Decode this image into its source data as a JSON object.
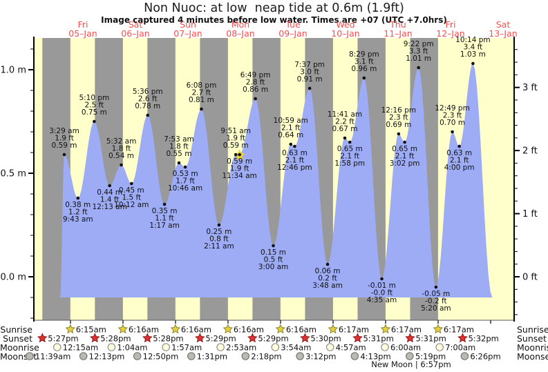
{
  "title": "Non Nuoc: at low  neap tide at 0.6m (1.9ft)",
  "subtitle": "Image captured 4 minutes before low water. Times are +07 (UTC +7.0hrs)",
  "days": [
    {
      "dow": "Fri",
      "date": "05–Jan"
    },
    {
      "dow": "Sat",
      "date": "06–Jan"
    },
    {
      "dow": "Sun",
      "date": "07–Jan"
    },
    {
      "dow": "Mon",
      "date": "08–Jan"
    },
    {
      "dow": "Tue",
      "date": "09–Jan"
    },
    {
      "dow": "Wed",
      "date": "10–Jan"
    },
    {
      "dow": "Thu",
      "date": "11–Jan"
    },
    {
      "dow": "Fri",
      "date": "12–Jan"
    },
    {
      "dow": "Sat",
      "date": "13–Jan"
    }
  ],
  "y_axis": {
    "left_ticks": [
      {
        "label": "1.0 m",
        "m": 1.0
      },
      {
        "label": "0.5 m",
        "m": 0.5
      },
      {
        "label": "0.0 m",
        "m": 0.0
      }
    ],
    "right_ticks": [
      {
        "label": "3 ft",
        "ft": 3
      },
      {
        "label": "2 ft",
        "ft": 2
      },
      {
        "label": "1 ft",
        "ft": 1
      },
      {
        "label": "0 ft",
        "ft": 0
      }
    ]
  },
  "chart_data": {
    "type": "area",
    "title": "Non Nuoc: at low  neap tide at 0.6m (1.9ft)",
    "ylabel_left": "m",
    "ylabel_right": "ft",
    "y_range_m": [
      -0.21,
      1.15
    ],
    "baseline_m": -0.1,
    "x_days": [
      "05-Jan",
      "06-Jan",
      "07-Jan",
      "08-Jan",
      "09-Jan",
      "10-Jan",
      "11-Jan",
      "12-Jan",
      "13-Jan"
    ],
    "tides": [
      {
        "day": 0,
        "time": "3:29 am",
        "kind": "high",
        "m": 0.59,
        "m_label": "0.59 m",
        "ft_label": "1.9 ft"
      },
      {
        "day": 0,
        "time": "9:43 am",
        "kind": "low",
        "m": 0.38,
        "m_label": "0.38 m",
        "ft_label": "1.2 ft"
      },
      {
        "day": 0,
        "time": "5:10 pm",
        "kind": "high",
        "m": 0.75,
        "m_label": "0.75 m",
        "ft_label": "2.5 ft"
      },
      {
        "day": 1,
        "time": "12:13 am",
        "kind": "low",
        "m": 0.44,
        "m_label": "0.44 m",
        "ft_label": "1.4 ft"
      },
      {
        "day": 1,
        "time": "5:32 am",
        "kind": "high",
        "m": 0.54,
        "m_label": "0.54 m",
        "ft_label": "1.8 ft"
      },
      {
        "day": 1,
        "time": "10:12 am",
        "kind": "low",
        "m": 0.45,
        "m_label": "0.45 m",
        "ft_label": "1.5 ft"
      },
      {
        "day": 1,
        "time": "5:36 pm",
        "kind": "high",
        "m": 0.78,
        "m_label": "0.78 m",
        "ft_label": "2.6 ft"
      },
      {
        "day": 2,
        "time": "1:17 am",
        "kind": "low",
        "m": 0.35,
        "m_label": "0.35 m",
        "ft_label": "1.1 ft"
      },
      {
        "day": 2,
        "time": "7:53 am",
        "kind": "high",
        "m": 0.55,
        "m_label": "0.55 m",
        "ft_label": "1.8 ft"
      },
      {
        "day": 2,
        "time": "10:46 am",
        "kind": "low",
        "m": 0.53,
        "m_label": "0.53 m",
        "ft_label": "1.7 ft"
      },
      {
        "day": 2,
        "time": "6:08 pm",
        "kind": "high",
        "m": 0.81,
        "m_label": "0.81 m",
        "ft_label": "2.7 ft"
      },
      {
        "day": 3,
        "time": "2:11 am",
        "kind": "low",
        "m": 0.25,
        "m_label": "0.25 m",
        "ft_label": "0.8 ft"
      },
      {
        "day": 3,
        "time": "9:51 am",
        "kind": "high",
        "m": 0.59,
        "m_label": "0.59 m",
        "ft_label": "1.9 ft"
      },
      {
        "day": 3,
        "time": "11:34 am",
        "kind": "low",
        "m": 0.59,
        "m_label": "0.59 m",
        "ft_label": "1.9 ft",
        "current": true
      },
      {
        "day": 3,
        "time": "6:49 pm",
        "kind": "high",
        "m": 0.86,
        "m_label": "0.86 m",
        "ft_label": "2.8 ft"
      },
      {
        "day": 4,
        "time": "3:00 am",
        "kind": "low",
        "m": 0.15,
        "m_label": "0.15 m",
        "ft_label": "0.5 ft"
      },
      {
        "day": 4,
        "time": "10:59 am",
        "kind": "high",
        "m": 0.64,
        "m_label": "0.64 m",
        "ft_label": "2.1 ft"
      },
      {
        "day": 4,
        "time": "12:46 pm",
        "kind": "low",
        "m": 0.63,
        "m_label": "0.63 m",
        "ft_label": "2.1 ft"
      },
      {
        "day": 4,
        "time": "7:37 pm",
        "kind": "high",
        "m": 0.91,
        "m_label": "0.91 m",
        "ft_label": "3.0 ft"
      },
      {
        "day": 5,
        "time": "3:48 am",
        "kind": "low",
        "m": 0.06,
        "m_label": "0.06 m",
        "ft_label": "0.2 ft"
      },
      {
        "day": 5,
        "time": "11:41 am",
        "kind": "high",
        "m": 0.67,
        "m_label": "0.67 m",
        "ft_label": "2.2 ft"
      },
      {
        "day": 5,
        "time": "1:58 pm",
        "kind": "low",
        "m": 0.65,
        "m_label": "0.65 m",
        "ft_label": "2.1 ft"
      },
      {
        "day": 5,
        "time": "8:29 pm",
        "kind": "high",
        "m": 0.96,
        "m_label": "0.96 m",
        "ft_label": "3.1 ft"
      },
      {
        "day": 6,
        "time": "4:35 am",
        "kind": "low",
        "m": -0.01,
        "m_label": "-0.01 m",
        "ft_label": "-0.0 ft"
      },
      {
        "day": 6,
        "time": "12:16 pm",
        "kind": "high",
        "m": 0.69,
        "m_label": "0.69 m",
        "ft_label": "2.3 ft"
      },
      {
        "day": 6,
        "time": "3:02 pm",
        "kind": "low",
        "m": 0.65,
        "m_label": "0.65 m",
        "ft_label": "2.1 ft"
      },
      {
        "day": 6,
        "time": "9:22 pm",
        "kind": "high",
        "m": 1.01,
        "m_label": "1.01 m",
        "ft_label": "3.3 ft"
      },
      {
        "day": 7,
        "time": "5:20 am",
        "kind": "low",
        "m": -0.05,
        "m_label": "-0.05 m",
        "ft_label": "-0.2 ft"
      },
      {
        "day": 7,
        "time": "12:49 pm",
        "kind": "high",
        "m": 0.7,
        "m_label": "0.70 m",
        "ft_label": "2.3 ft"
      },
      {
        "day": 7,
        "time": "4:00 pm",
        "kind": "low",
        "m": 0.63,
        "m_label": "0.63 m",
        "ft_label": "2.1 ft"
      },
      {
        "day": 7,
        "time": "10:14 pm",
        "kind": "high",
        "m": 1.03,
        "m_label": "1.03 m",
        "ft_label": "3.4 ft"
      }
    ]
  },
  "astro": {
    "rows": [
      {
        "id": "sunrise",
        "label": "Sunrise",
        "icon": "sunrise-star-icon",
        "events": [
          {
            "day": 0,
            "time": "6:15am"
          },
          {
            "day": 1,
            "time": "6:16am"
          },
          {
            "day": 2,
            "time": "6:16am"
          },
          {
            "day": 3,
            "time": "6:16am"
          },
          {
            "day": 4,
            "time": "6:16am"
          },
          {
            "day": 5,
            "time": "6:17am"
          },
          {
            "day": 6,
            "time": "6:17am"
          },
          {
            "day": 7,
            "time": "6:17am"
          }
        ]
      },
      {
        "id": "sunset",
        "label": "Sunset",
        "icon": "sunset-star-icon",
        "events": [
          {
            "day": -1,
            "time": "5:27pm"
          },
          {
            "day": 0,
            "time": "5:28pm"
          },
          {
            "day": 1,
            "time": "5:28pm"
          },
          {
            "day": 2,
            "time": "5:29pm"
          },
          {
            "day": 3,
            "time": "5:29pm"
          },
          {
            "day": 4,
            "time": "5:30pm"
          },
          {
            "day": 5,
            "time": "5:31pm"
          },
          {
            "day": 6,
            "time": "5:31pm"
          },
          {
            "day": 7,
            "time": "5:32pm"
          }
        ]
      },
      {
        "id": "moonrise",
        "label": "Moonrise",
        "icon": "moonrise-circle-icon",
        "events": [
          {
            "day": 0,
            "time": "12:15am"
          },
          {
            "day": 1,
            "time": "1:04am"
          },
          {
            "day": 2,
            "time": "1:57am"
          },
          {
            "day": 3,
            "time": "2:53am"
          },
          {
            "day": 4,
            "time": "3:54am"
          },
          {
            "day": 5,
            "time": "4:57am"
          },
          {
            "day": 6,
            "time": "6:00am"
          },
          {
            "day": 7,
            "time": "7:00am"
          }
        ]
      },
      {
        "id": "moonset",
        "label": "Moonset",
        "icon": "moonset-circle-icon",
        "events": [
          {
            "day": -1,
            "time": "11:39am"
          },
          {
            "day": 0,
            "time": "12:13pm"
          },
          {
            "day": 1,
            "time": "12:50pm"
          },
          {
            "day": 2,
            "time": "1:31pm"
          },
          {
            "day": 3,
            "time": "2:18pm"
          },
          {
            "day": 4,
            "time": "3:12pm"
          },
          {
            "day": 5,
            "time": "4:13pm"
          },
          {
            "day": 6,
            "time": "5:19pm"
          },
          {
            "day": 7,
            "time": "6:26pm"
          }
        ]
      }
    ],
    "new_moon": "New Moon | 6:57pm"
  },
  "colors": {
    "day_band": "#ffffcc",
    "night_band": "#999999",
    "tide_fill": "#9dacf4",
    "day_label": "#f84d4d",
    "text": "#111111",
    "current_marker": "#f2d327",
    "sunrise_star": "#e6cf3e",
    "sunrise_star_edge": "#8a8530",
    "sunset_star": "#e03030",
    "sunset_star_edge": "#8f1a1a",
    "moonrise_fill": "#ffffdd",
    "moonrise_edge": "#8f8f8f",
    "moonset_fill": "#b9bab3",
    "moonset_edge": "#787870"
  }
}
